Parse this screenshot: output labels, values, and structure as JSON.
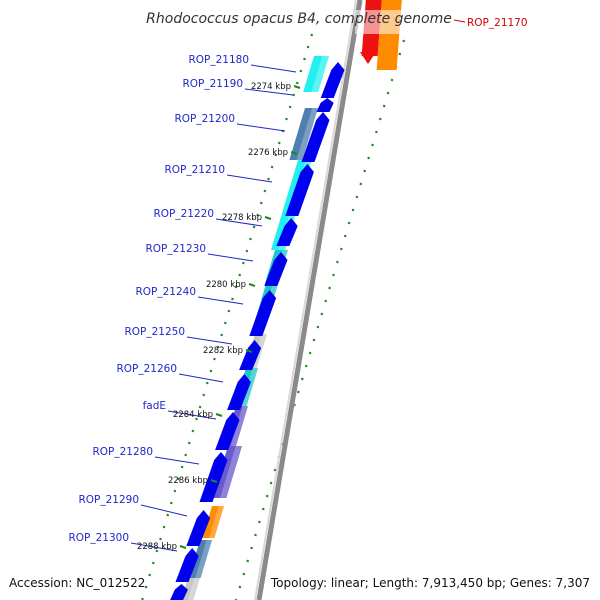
{
  "title": "Rhodococcus opacus B4, complete genome",
  "footer": {
    "accession": "Accession: NC_012522",
    "topology": "Topology: linear; Length: 7,913,450 bp; Genes: 7,307"
  },
  "colors": {
    "cds_arrow": "#0000ee",
    "cyan": "#22f0f0",
    "teal": "#1ec6c6",
    "steelblue": "#4f7fb0",
    "violet": "#6a5acd",
    "orange": "#ff8c00",
    "gray": "#c8c8c8",
    "red": "#ee1111",
    "label_blue": "#1f28c8",
    "label_red": "#d40000",
    "tick_green": "#1a8a1a"
  },
  "genes": [
    {
      "id": "ROP_21170",
      "color_key": "red"
    },
    {
      "id": "ROP_21180",
      "color_key": "cyan"
    },
    {
      "id": "ROP_21190",
      "color_key": "cyan"
    },
    {
      "id": "ROP_21200",
      "color_key": "steelblue"
    },
    {
      "id": "ROP_21210",
      "color_key": "cyan"
    },
    {
      "id": "ROP_21220",
      "color_key": "cyan"
    },
    {
      "id": "ROP_21230",
      "color_key": "teal"
    },
    {
      "id": "ROP_21240",
      "color_key": "teal"
    },
    {
      "id": "ROP_21250",
      "color_key": "gray"
    },
    {
      "id": "ROP_21260",
      "color_key": "teal"
    },
    {
      "id": "fadE",
      "color_key": "violet"
    },
    {
      "id": "ROP_21280",
      "color_key": "violet"
    },
    {
      "id": "ROP_21290",
      "color_key": "orange"
    },
    {
      "id": "ROP_21300",
      "color_key": "steelblue"
    }
  ],
  "kbp_ticks": [
    "2274 kbp",
    "2276 kbp",
    "2278 kbp",
    "2280 kbp",
    "2282 kbp",
    "2284 kbp",
    "2286 kbp",
    "2288 kbp"
  ]
}
